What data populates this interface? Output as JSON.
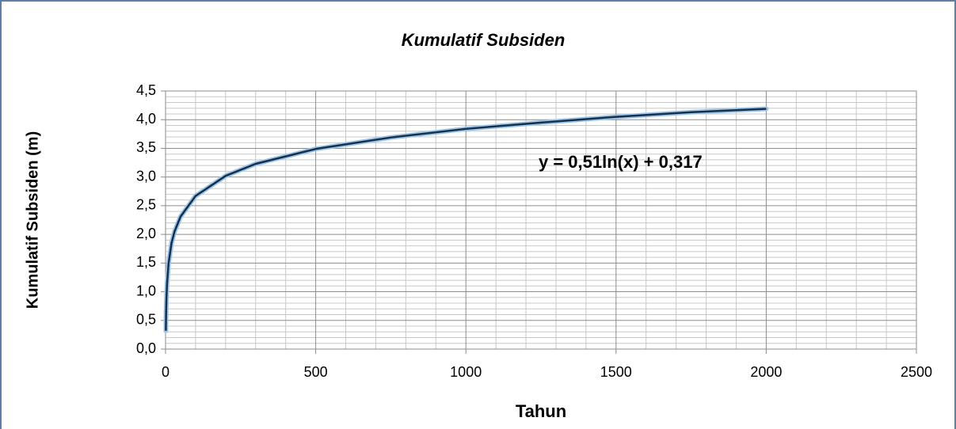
{
  "chart_data": {
    "type": "line",
    "title": "Kumulatif Subsiden",
    "x_label": "Tahun",
    "y_label": "Kumulatif Subsiden (m)",
    "annotation": "y = 0,51ln(x) + 0,317",
    "x": [
      1,
      2,
      3,
      5,
      10,
      20,
      30,
      50,
      100,
      200,
      300,
      500,
      750,
      1000,
      1250,
      1500,
      1750,
      2000
    ],
    "series": [
      {
        "color": "#14304f",
        "values": [
          0.32,
          0.67,
          0.88,
          1.14,
          1.49,
          1.85,
          2.05,
          2.31,
          2.67,
          3.02,
          3.23,
          3.49,
          3.69,
          3.84,
          3.95,
          4.05,
          4.13,
          4.19
        ]
      }
    ],
    "xlim": [
      0,
      2500
    ],
    "xticks": [
      0,
      500,
      1000,
      1500,
      2000,
      2500
    ],
    "ylim": [
      0,
      4.5
    ],
    "yticks": [
      {
        "value": 0,
        "label": "0,0"
      },
      {
        "value": 0.5,
        "label": "0,5"
      },
      {
        "value": 1,
        "label": "1,0"
      },
      {
        "value": 1.5,
        "label": "1,5"
      },
      {
        "value": 2,
        "label": "2,0"
      },
      {
        "value": 2.5,
        "label": "2,5"
      },
      {
        "value": 3,
        "label": "3,0"
      },
      {
        "value": 3.5,
        "label": "3,5"
      },
      {
        "value": 4,
        "label": "4,0"
      },
      {
        "value": 4.5,
        "label": "4,5"
      }
    ],
    "grid": true,
    "minor_grid_per_major": 5
  }
}
